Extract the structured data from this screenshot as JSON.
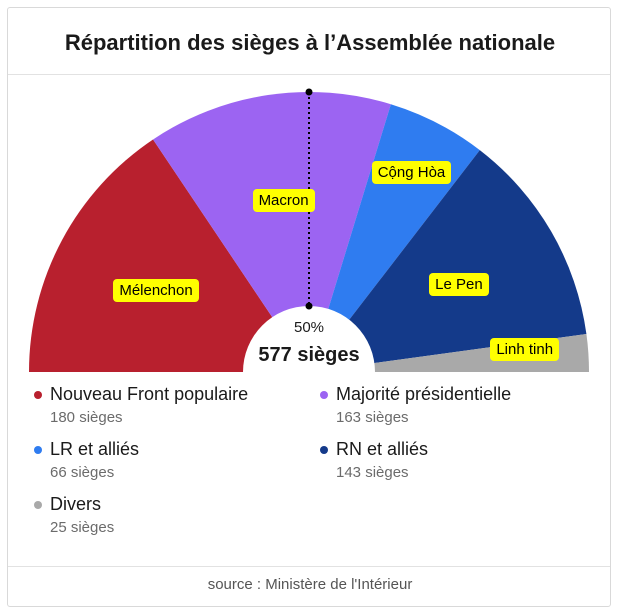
{
  "title": "Répartition des sièges à l’Assemblée nationale",
  "center": {
    "percent": "50%",
    "total": "577 sièges"
  },
  "source": {
    "label": "source :",
    "value": "Ministère de l'Intérieur"
  },
  "chart_data": {
    "type": "pie",
    "subtype": "hemicycle",
    "total": 577,
    "series": [
      {
        "name": "Nouveau Front populaire",
        "seats": 180,
        "seats_label": "180 sièges",
        "color": "#b8202e",
        "annotation": "Mélenchon"
      },
      {
        "name": "Majorité présidentielle",
        "seats": 163,
        "seats_label": "163 sièges",
        "color": "#9c64f2",
        "annotation": "Macron"
      },
      {
        "name": "LR et alliés",
        "seats": 66,
        "seats_label": "66 sièges",
        "color": "#2f7cf0",
        "annotation": "Cộng Hòa"
      },
      {
        "name": "RN et alliés",
        "seats": 143,
        "seats_label": "143 sièges",
        "color": "#143a8a",
        "annotation": "Le Pen"
      },
      {
        "name": "Divers",
        "seats": 25,
        "seats_label": "25 sièges",
        "color": "#a9a9a9",
        "annotation": "Linh tinh"
      }
    ],
    "majority_line": "50%"
  }
}
